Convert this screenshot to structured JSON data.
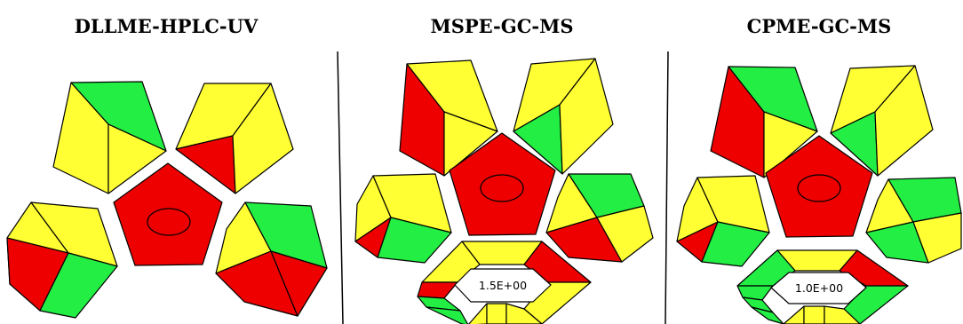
{
  "colors": {
    "green": "#22ee44",
    "yellow": "#ffff33",
    "red": "#ee0000",
    "outline": "#000000",
    "divider": "#000000"
  },
  "panels": [
    {
      "title": "DLLME-HPLC-UV",
      "center": "red",
      "pentagons": {
        "top_left": [
          "yellow",
          "green",
          "yellow"
        ],
        "top_right": [
          "yellow",
          "red",
          "yellow"
        ],
        "bottom_left": [
          "yellow",
          "yellow",
          "red",
          "green"
        ],
        "bottom_right": [
          "yellow",
          "green",
          "red",
          "red"
        ]
      }
    },
    {
      "title": "MSPE-GC-MS",
      "center": "red",
      "pentagons": {
        "top_left": [
          "red",
          "yellow",
          "yellow"
        ],
        "top_right": [
          "yellow",
          "green",
          "yellow"
        ],
        "bottom_left": [
          "yellow",
          "yellow",
          "red",
          "green"
        ],
        "bottom_right": [
          "yellow",
          "green",
          "red",
          "yellow"
        ]
      },
      "hexagon": {
        "value": "1.5E+00",
        "mostly": "yellow"
      }
    },
    {
      "title": "CPME-GC-MS",
      "center": "red",
      "pentagons": {
        "top_left": [
          "red",
          "green",
          "yellow"
        ],
        "top_right": [
          "yellow",
          "green",
          "yellow"
        ],
        "bottom_left": [
          "yellow",
          "yellow",
          "red",
          "green"
        ],
        "bottom_right": [
          "yellow",
          "green",
          "green",
          "yellow"
        ]
      },
      "hexagon": {
        "value": "1.0E+00",
        "mostly": "green"
      }
    }
  ]
}
